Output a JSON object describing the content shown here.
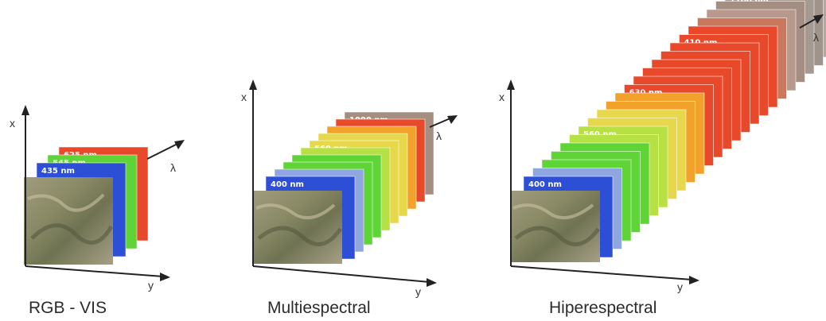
{
  "panels": [
    {
      "caption": "RGB - VIS",
      "axes": {
        "x": "x",
        "y": "y",
        "lambda": "λ"
      },
      "band_labels": [
        "435 nm",
        "545 nm",
        "625 nm"
      ]
    },
    {
      "caption": "Multiespectral",
      "axes": {
        "x": "x",
        "y": "y",
        "lambda": "λ"
      },
      "band_labels": [
        "400 nm",
        "560 nm",
        "1000 nm"
      ]
    },
    {
      "caption": "Hiperespectral",
      "axes": {
        "x": "x",
        "y": "y",
        "lambda": "λ"
      },
      "band_labels": [
        "400 nm",
        "560 nm",
        "630 nm",
        "410 nm",
        "1100 nm",
        "2250 nm"
      ]
    }
  ],
  "colors": {
    "blue": "#2d4fd6",
    "lightblue": "#8fa6e0",
    "green": "#5fd436",
    "yellowgreen": "#b6e043",
    "yellow": "#e6d84a",
    "orange": "#f2a22a",
    "red": "#e8492a",
    "gray": "#a48e82"
  }
}
